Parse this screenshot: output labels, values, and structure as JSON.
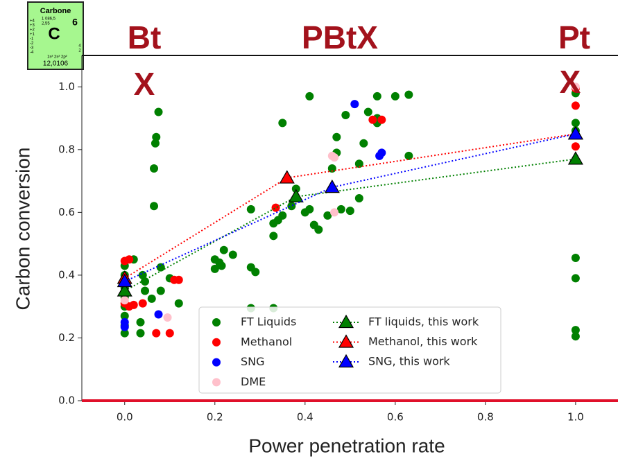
{
  "chart_data": {
    "type": "scatter",
    "xlabel": "Power penetration rate",
    "ylabel": "Carbon conversion",
    "xlim": [
      -0.095,
      1.094
    ],
    "ylim": [
      0,
      1.1
    ],
    "xticks": [
      {
        "value": 0,
        "label": "0.0"
      },
      {
        "value": 0.2,
        "label": "0.2"
      },
      {
        "value": 0.4,
        "label": "0.4"
      },
      {
        "value": 0.6,
        "label": "0.6"
      },
      {
        "value": 0.8,
        "label": "0.8"
      },
      {
        "value": 1,
        "label": "1.0"
      }
    ],
    "yticks": [
      {
        "value": 0,
        "label": "0.0"
      },
      {
        "value": 0.2,
        "label": "0.2"
      },
      {
        "value": 0.4,
        "label": "0.4"
      },
      {
        "value": 0.6,
        "label": "0.6"
      },
      {
        "value": 0.8,
        "label": "0.8"
      },
      {
        "value": 1,
        "label": "1.0"
      }
    ],
    "series": [
      {
        "name": "FT Liquids",
        "color": "#008000",
        "x": [
          0,
          0,
          0,
          0,
          0,
          0,
          0,
          0,
          0.02,
          0.035,
          0.035,
          0.04,
          0.045,
          0.045,
          0.06,
          0.065,
          0.065,
          0.068,
          0.07,
          0.075,
          0.08,
          0.08,
          0.1,
          0.12,
          0.2,
          0.2,
          0.21,
          0.215,
          0.22,
          0.24,
          0.28,
          0.29,
          0.28,
          0.28,
          0.33,
          0.33,
          0.33,
          0.34,
          0.35,
          0.35,
          0.37,
          0.38,
          0.4,
          0.41,
          0.41,
          0.42,
          0.43,
          0.45,
          0.46,
          0.47,
          0.47,
          0.48,
          0.49,
          0.5,
          0.52,
          0.52,
          0.53,
          0.54,
          0.56,
          0.56,
          0.56,
          0.6,
          0.63,
          0.63,
          1,
          1,
          1,
          1,
          1,
          1,
          1
        ],
        "values": [
          0.43,
          0.4,
          0.36,
          0.33,
          0.3,
          0.27,
          0.24,
          0.215,
          0.45,
          0.25,
          0.215,
          0.4,
          0.38,
          0.35,
          0.325,
          0.62,
          0.74,
          0.82,
          0.84,
          0.92,
          0.425,
          0.35,
          0.39,
          0.31,
          0.45,
          0.42,
          0.44,
          0.43,
          0.48,
          0.465,
          0.425,
          0.41,
          0.295,
          0.61,
          0.295,
          0.525,
          0.565,
          0.575,
          0.59,
          0.885,
          0.62,
          0.675,
          0.6,
          0.97,
          0.61,
          0.56,
          0.545,
          0.59,
          0.74,
          0.79,
          0.84,
          0.61,
          0.91,
          0.605,
          0.645,
          0.755,
          0.82,
          0.92,
          0.9,
          0.885,
          0.97,
          0.97,
          0.975,
          0.78,
          0.98,
          0.885,
          0.86,
          0.455,
          0.39,
          0.225,
          0.205
        ]
      },
      {
        "name": "Methanol",
        "color": "#ff0000",
        "x": [
          0,
          0.01,
          0,
          0.01,
          0.02,
          0.04,
          0.07,
          0.1,
          0.11,
          0.12,
          0.335,
          0.55,
          0.57,
          1,
          1,
          1
        ],
        "values": [
          0.445,
          0.45,
          0.31,
          0.3,
          0.305,
          0.31,
          0.215,
          0.215,
          0.385,
          0.385,
          0.615,
          0.895,
          0.895,
          0.94,
          0.81,
          0.995
        ]
      },
      {
        "name": "SNG",
        "color": "#0000ff",
        "x": [
          0,
          0,
          0.075,
          0.51,
          0.565,
          0.57
        ],
        "values": [
          0.25,
          0.235,
          0.275,
          0.945,
          0.78,
          0.79
        ]
      },
      {
        "name": "DME",
        "color": "#ffc0cb",
        "x": [
          0,
          0.095,
          0.46,
          0.465,
          0.465,
          1
        ],
        "values": [
          0.32,
          0.265,
          0.78,
          0.775,
          0.6,
          1.0
        ]
      },
      {
        "name": "FT liquids, this work",
        "color": "#008000",
        "type": "line",
        "x": [
          0,
          0.38,
          1
        ],
        "values": [
          0.35,
          0.65,
          0.77
        ]
      },
      {
        "name": "Methanol, this work",
        "color": "#ff0000",
        "type": "line",
        "x": [
          0,
          0.36,
          1
        ],
        "values": [
          0.39,
          0.71,
          0.85
        ]
      },
      {
        "name": "SNG, this work",
        "color": "#0000ff",
        "type": "line",
        "x": [
          0,
          0.46,
          1
        ],
        "values": [
          0.38,
          0.68,
          0.85
        ]
      }
    ]
  },
  "overlay": {
    "labels": [
      "Bt",
      "PBtX",
      "Pt",
      "X",
      "X"
    ],
    "color": "#a3121c"
  },
  "element_tile": {
    "name": "Carbone",
    "number": "6",
    "symbol": "C",
    "melting": "1 086,5",
    "electronegativity": "2,55",
    "oxidation": [
      "+4",
      "+3",
      "+2",
      "+1",
      "-1",
      "-2",
      "-3",
      "-4"
    ],
    "shells": [
      "4",
      "2"
    ],
    "configuration": "1s² 2s² 2p²",
    "mass": "12,0106"
  }
}
